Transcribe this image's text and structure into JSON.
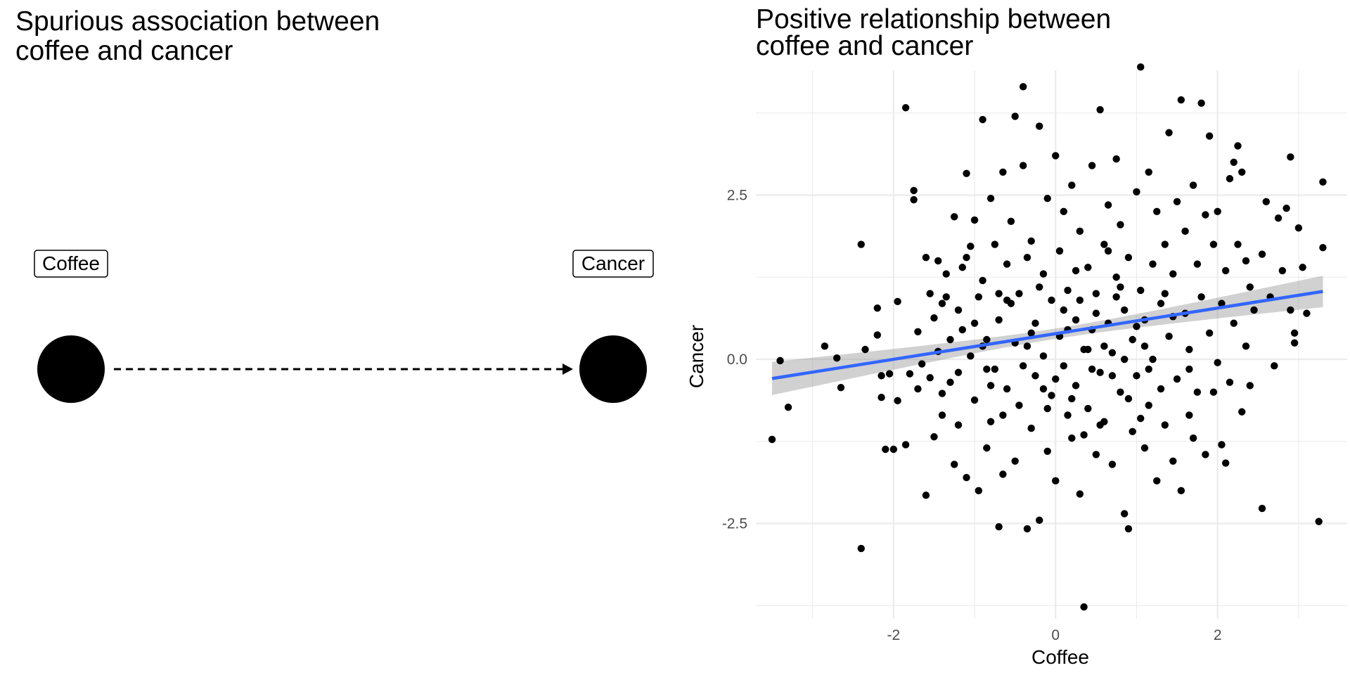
{
  "dag": {
    "title_line1": "Spurious association between",
    "title_line2": "coffee and cancer",
    "nodes": [
      {
        "id": "coffee",
        "label": "Coffee"
      },
      {
        "id": "cancer",
        "label": "Cancer"
      }
    ],
    "edges": [
      {
        "from": "coffee",
        "to": "cancer",
        "style": "dashed"
      }
    ]
  },
  "chart_data": {
    "type": "scatter",
    "title": "Positive relationship between coffee and cancer",
    "title_line1": "Positive relationship between",
    "title_line2": "coffee and cancer",
    "xlabel": "Coffee",
    "ylabel": "Cancer",
    "xlim": [
      -3.7,
      3.6
    ],
    "ylim": [
      -3.95,
      4.4
    ],
    "x_ticks": [
      -2,
      0,
      2
    ],
    "x_tick_labels": [
      "-2",
      "0",
      "2"
    ],
    "y_ticks": [
      -2.5,
      0,
      2.5
    ],
    "y_tick_labels": [
      "-2.5",
      "0.0",
      "2.5"
    ],
    "x_minor_ticks": [
      -3,
      -1,
      1,
      3
    ],
    "y_minor_ticks": [
      -3.75,
      -1.25,
      1.25,
      3.75
    ],
    "grid": true,
    "legend": "none",
    "point_color": "#000000",
    "fit": {
      "method": "linear",
      "intercept": 0.39,
      "slope": 0.195,
      "x_range": [
        -3.5,
        3.3
      ],
      "line_color": "#3366FF",
      "ribbon_color": "#999999",
      "se_at_mean": 0.04,
      "se_slope": 0.035
    },
    "points": [
      [
        -3.5,
        -1.22
      ],
      [
        -3.4,
        -0.02
      ],
      [
        -3.3,
        -0.73
      ],
      [
        -2.85,
        0.2
      ],
      [
        -2.7,
        0.02
      ],
      [
        -2.65,
        -0.43
      ],
      [
        -2.4,
        1.75
      ],
      [
        -2.4,
        -2.88
      ],
      [
        -2.35,
        0.15
      ],
      [
        -2.2,
        0.78
      ],
      [
        -2.2,
        0.37
      ],
      [
        -2.15,
        -0.25
      ],
      [
        -2.15,
        -0.58
      ],
      [
        -2.1,
        -1.37
      ],
      [
        -2.05,
        -0.22
      ],
      [
        -2.0,
        -1.37
      ],
      [
        -1.95,
        -0.63
      ],
      [
        -1.95,
        0.88
      ],
      [
        -1.85,
        3.83
      ],
      [
        -1.85,
        -1.3
      ],
      [
        -1.8,
        -0.22
      ],
      [
        -1.75,
        2.43
      ],
      [
        -1.75,
        2.57
      ],
      [
        -1.7,
        0.42
      ],
      [
        -1.7,
        -0.45
      ],
      [
        -1.65,
        -0.07
      ],
      [
        -1.6,
        1.55
      ],
      [
        -1.6,
        -2.07
      ],
      [
        -1.55,
        1.0
      ],
      [
        -1.55,
        -0.28
      ],
      [
        -1.5,
        0.63
      ],
      [
        -1.5,
        -1.18
      ],
      [
        -1.45,
        1.5
      ],
      [
        -1.45,
        0.12
      ],
      [
        -1.4,
        -0.52
      ],
      [
        -1.4,
        -0.85
      ],
      [
        -1.35,
        0.95
      ],
      [
        -1.35,
        1.3
      ],
      [
        -1.3,
        0.3
      ],
      [
        -1.3,
        -0.35
      ],
      [
        -1.25,
        2.17
      ],
      [
        -1.25,
        -1.6
      ],
      [
        -1.2,
        0.75
      ],
      [
        -1.2,
        -1.0
      ],
      [
        -1.15,
        1.4
      ],
      [
        -1.15,
        0.45
      ],
      [
        -1.1,
        2.83
      ],
      [
        -1.1,
        -1.8
      ],
      [
        -1.05,
        0.05
      ],
      [
        -1.05,
        1.72
      ],
      [
        -1.0,
        -0.62
      ],
      [
        -1.0,
        2.12
      ],
      [
        -0.95,
        -2.0
      ],
      [
        -0.95,
        0.95
      ],
      [
        -0.9,
        3.65
      ],
      [
        -0.9,
        1.2
      ],
      [
        -0.85,
        -1.35
      ],
      [
        -0.85,
        0.3
      ],
      [
        -0.8,
        2.45
      ],
      [
        -0.8,
        -0.95
      ],
      [
        -0.75,
        1.75
      ],
      [
        -0.75,
        -0.15
      ],
      [
        -0.7,
        -2.55
      ],
      [
        -0.7,
        0.6
      ],
      [
        -0.65,
        2.85
      ],
      [
        -0.65,
        -1.75
      ],
      [
        -0.6,
        1.45
      ],
      [
        -0.6,
        -0.45
      ],
      [
        -0.55,
        2.1
      ],
      [
        -0.55,
        0.85
      ],
      [
        -0.5,
        3.7
      ],
      [
        -0.5,
        -1.55
      ],
      [
        -0.45,
        1.0
      ],
      [
        -0.45,
        -0.7
      ],
      [
        -0.4,
        4.15
      ],
      [
        -0.4,
        2.95
      ],
      [
        -0.35,
        -2.58
      ],
      [
        -0.35,
        0.2
      ],
      [
        -0.3,
        1.8
      ],
      [
        -0.3,
        -1.05
      ],
      [
        -0.25,
        0.55
      ],
      [
        -0.25,
        -0.25
      ],
      [
        -0.2,
        3.55
      ],
      [
        -0.2,
        -2.45
      ],
      [
        -0.15,
        1.3
      ],
      [
        -0.15,
        0.05
      ],
      [
        -0.1,
        2.45
      ],
      [
        -0.1,
        -1.4
      ],
      [
        -0.05,
        0.9
      ],
      [
        -0.05,
        -0.55
      ],
      [
        0.0,
        3.1
      ],
      [
        0.0,
        -1.85
      ],
      [
        0.05,
        1.65
      ],
      [
        0.05,
        0.35
      ],
      [
        0.1,
        -0.1
      ],
      [
        0.1,
        2.25
      ],
      [
        0.15,
        -0.85
      ],
      [
        0.15,
        1.05
      ],
      [
        0.2,
        2.65
      ],
      [
        0.2,
        -1.2
      ],
      [
        0.25,
        0.6
      ],
      [
        0.25,
        -0.4
      ],
      [
        0.3,
        1.95
      ],
      [
        0.3,
        -2.05
      ],
      [
        0.35,
        0.15
      ],
      [
        0.35,
        -3.77
      ],
      [
        0.4,
        1.4
      ],
      [
        0.4,
        -0.75
      ],
      [
        0.45,
        2.95
      ],
      [
        0.45,
        0.45
      ],
      [
        0.5,
        -1.45
      ],
      [
        0.5,
        1.0
      ],
      [
        0.55,
        -0.2
      ],
      [
        0.55,
        3.8
      ],
      [
        0.6,
        1.75
      ],
      [
        0.6,
        -0.95
      ],
      [
        0.65,
        0.55
      ],
      [
        0.65,
        2.35
      ],
      [
        0.7,
        -1.6
      ],
      [
        0.7,
        0.1
      ],
      [
        0.75,
        3.05
      ],
      [
        0.75,
        1.25
      ],
      [
        0.8,
        -0.5
      ],
      [
        0.8,
        2.05
      ],
      [
        0.85,
        -2.35
      ],
      [
        0.85,
        0.75
      ],
      [
        0.9,
        -2.58
      ],
      [
        0.9,
        1.55
      ],
      [
        0.95,
        -1.1
      ],
      [
        0.95,
        0.3
      ],
      [
        1.0,
        2.55
      ],
      [
        1.0,
        -0.25
      ],
      [
        1.05,
        4.45
      ],
      [
        1.05,
        1.05
      ],
      [
        1.1,
        -1.35
      ],
      [
        1.1,
        0.6
      ],
      [
        1.15,
        2.85
      ],
      [
        1.15,
        -0.7
      ],
      [
        1.2,
        1.45
      ],
      [
        1.2,
        0.0
      ],
      [
        1.25,
        -1.85
      ],
      [
        1.25,
        2.25
      ],
      [
        1.3,
        0.85
      ],
      [
        1.3,
        -0.45
      ],
      [
        1.35,
        1.75
      ],
      [
        1.35,
        -1.0
      ],
      [
        1.4,
        3.45
      ],
      [
        1.4,
        0.35
      ],
      [
        1.45,
        -1.55
      ],
      [
        1.45,
        1.3
      ],
      [
        1.5,
        2.4
      ],
      [
        1.5,
        -0.3
      ],
      [
        1.55,
        3.95
      ],
      [
        1.55,
        -2.0
      ],
      [
        1.6,
        0.7
      ],
      [
        1.6,
        1.95
      ],
      [
        1.65,
        -0.85
      ],
      [
        1.65,
        0.15
      ],
      [
        1.7,
        2.65
      ],
      [
        1.7,
        -1.2
      ],
      [
        1.75,
        1.45
      ],
      [
        1.75,
        -0.5
      ],
      [
        1.8,
        3.9
      ],
      [
        1.8,
        0.95
      ],
      [
        1.85,
        -1.45
      ],
      [
        1.85,
        2.2
      ],
      [
        1.9,
        3.4
      ],
      [
        1.9,
        0.4
      ],
      [
        1.95,
        -0.5
      ],
      [
        1.95,
        1.75
      ],
      [
        2.0,
        -0.05
      ],
      [
        2.0,
        2.25
      ],
      [
        2.05,
        -1.3
      ],
      [
        2.05,
        0.85
      ],
      [
        2.1,
        -1.58
      ],
      [
        2.1,
        1.35
      ],
      [
        2.15,
        2.75
      ],
      [
        2.15,
        -0.35
      ],
      [
        2.2,
        3.0
      ],
      [
        2.2,
        0.55
      ],
      [
        2.25,
        3.25
      ],
      [
        2.25,
        1.75
      ],
      [
        2.3,
        -0.8
      ],
      [
        2.3,
        2.85
      ],
      [
        2.35,
        1.5
      ],
      [
        2.35,
        0.2
      ],
      [
        2.4,
        -0.4
      ],
      [
        2.4,
        1.1
      ],
      [
        2.45,
        0.75
      ],
      [
        2.55,
        -2.27
      ],
      [
        2.55,
        1.6
      ],
      [
        2.6,
        2.4
      ],
      [
        2.65,
        0.95
      ],
      [
        2.7,
        -0.1
      ],
      [
        2.75,
        2.15
      ],
      [
        2.8,
        1.35
      ],
      [
        2.85,
        2.3
      ],
      [
        2.9,
        0.75
      ],
      [
        2.9,
        3.08
      ],
      [
        2.95,
        0.4
      ],
      [
        2.95,
        0.25
      ],
      [
        3.0,
        2.0
      ],
      [
        3.05,
        1.4
      ],
      [
        3.1,
        0.7
      ],
      [
        3.25,
        -2.47
      ],
      [
        3.3,
        2.7
      ],
      [
        3.3,
        1.7
      ],
      [
        -0.9,
        0.2
      ],
      [
        -0.6,
        0.9
      ],
      [
        -0.3,
        0.4
      ],
      [
        0.0,
        -0.3
      ],
      [
        0.3,
        0.9
      ],
      [
        0.6,
        0.2
      ],
      [
        0.9,
        -0.6
      ],
      [
        -1.2,
        -0.2
      ],
      [
        -0.8,
        -0.4
      ],
      [
        -0.4,
        -0.1
      ],
      [
        0.2,
        -0.6
      ],
      [
        0.5,
        0.7
      ],
      [
        0.8,
        1.1
      ],
      [
        1.1,
        0.2
      ],
      [
        -1.0,
        0.55
      ],
      [
        -0.7,
        1.0
      ],
      [
        -0.2,
        1.1
      ],
      [
        0.1,
        0.75
      ],
      [
        0.4,
        0.15
      ],
      [
        0.7,
        -0.25
      ],
      [
        1.0,
        0.5
      ],
      [
        -0.5,
        0.25
      ],
      [
        -0.1,
        -0.75
      ],
      [
        0.25,
        1.35
      ],
      [
        0.55,
        -1.0
      ],
      [
        0.85,
        0.0
      ],
      [
        1.15,
        -0.15
      ],
      [
        1.45,
        0.65
      ],
      [
        -1.4,
        0.85
      ],
      [
        -1.1,
        1.55
      ],
      [
        -0.85,
        -0.15
      ],
      [
        -0.35,
        1.55
      ],
      [
        0.15,
        0.45
      ],
      [
        0.45,
        -0.15
      ],
      [
        0.75,
        0.95
      ],
      [
        -0.65,
        -0.85
      ],
      [
        -0.15,
        -0.45
      ],
      [
        0.35,
        -1.15
      ],
      [
        0.65,
        1.65
      ],
      [
        1.05,
        -0.9
      ],
      [
        1.35,
        1.0
      ],
      [
        1.65,
        -0.15
      ]
    ]
  }
}
